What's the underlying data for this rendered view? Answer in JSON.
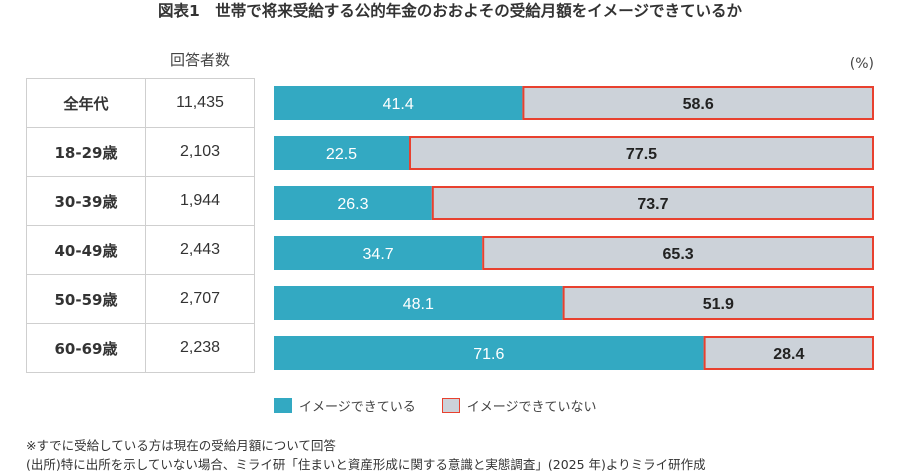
{
  "title": "図表1　世帯で将来受給する公的年金のおおよその受給月額をイメージできているか",
  "table": {
    "header_count": "回答者数",
    "rows": [
      {
        "age": "全年代",
        "n": "11,435"
      },
      {
        "age": "18-29歳",
        "n": "2,103"
      },
      {
        "age": "30-39歳",
        "n": "1,944"
      },
      {
        "age": "40-49歳",
        "n": "2,443"
      },
      {
        "age": "50-59歳",
        "n": "2,707"
      },
      {
        "age": "60-69歳",
        "n": "2,238"
      }
    ]
  },
  "chart_data": {
    "type": "bar",
    "orientation": "horizontal",
    "stacked": true,
    "percent_stacked": true,
    "unit": "(%)",
    "categories": [
      "全年代",
      "18-29歳",
      "30-39歳",
      "40-49歳",
      "50-59歳",
      "60-69歳"
    ],
    "series": [
      {
        "name": "イメージできている",
        "values": [
          41.4,
          22.5,
          26.3,
          34.7,
          48.1,
          71.6
        ],
        "labels": [
          "41.4",
          "22.5",
          "26.3",
          "34.7",
          "48.1",
          "71.6"
        ],
        "color": "#33a9c2",
        "label_color": "#ffffff"
      },
      {
        "name": "イメージできていない",
        "values": [
          58.6,
          77.5,
          73.7,
          65.3,
          51.9,
          28.4
        ],
        "labels": [
          "58.6",
          "77.5",
          "73.7",
          "65.3",
          "51.9",
          "28.4"
        ],
        "color": "#ccd2d9",
        "border": "#e8412f",
        "label_color": "#222222"
      }
    ],
    "xlim": [
      0,
      100
    ],
    "legend_position": "bottom-left",
    "grid": false
  },
  "notes": [
    "※すでに受給している方は現在の受給月額について回答",
    "(出所)特に出所を示していない場合、ミライ研「住まいと資産形成に関する意識と実態調査」(2025 年)よりミライ研作成"
  ]
}
